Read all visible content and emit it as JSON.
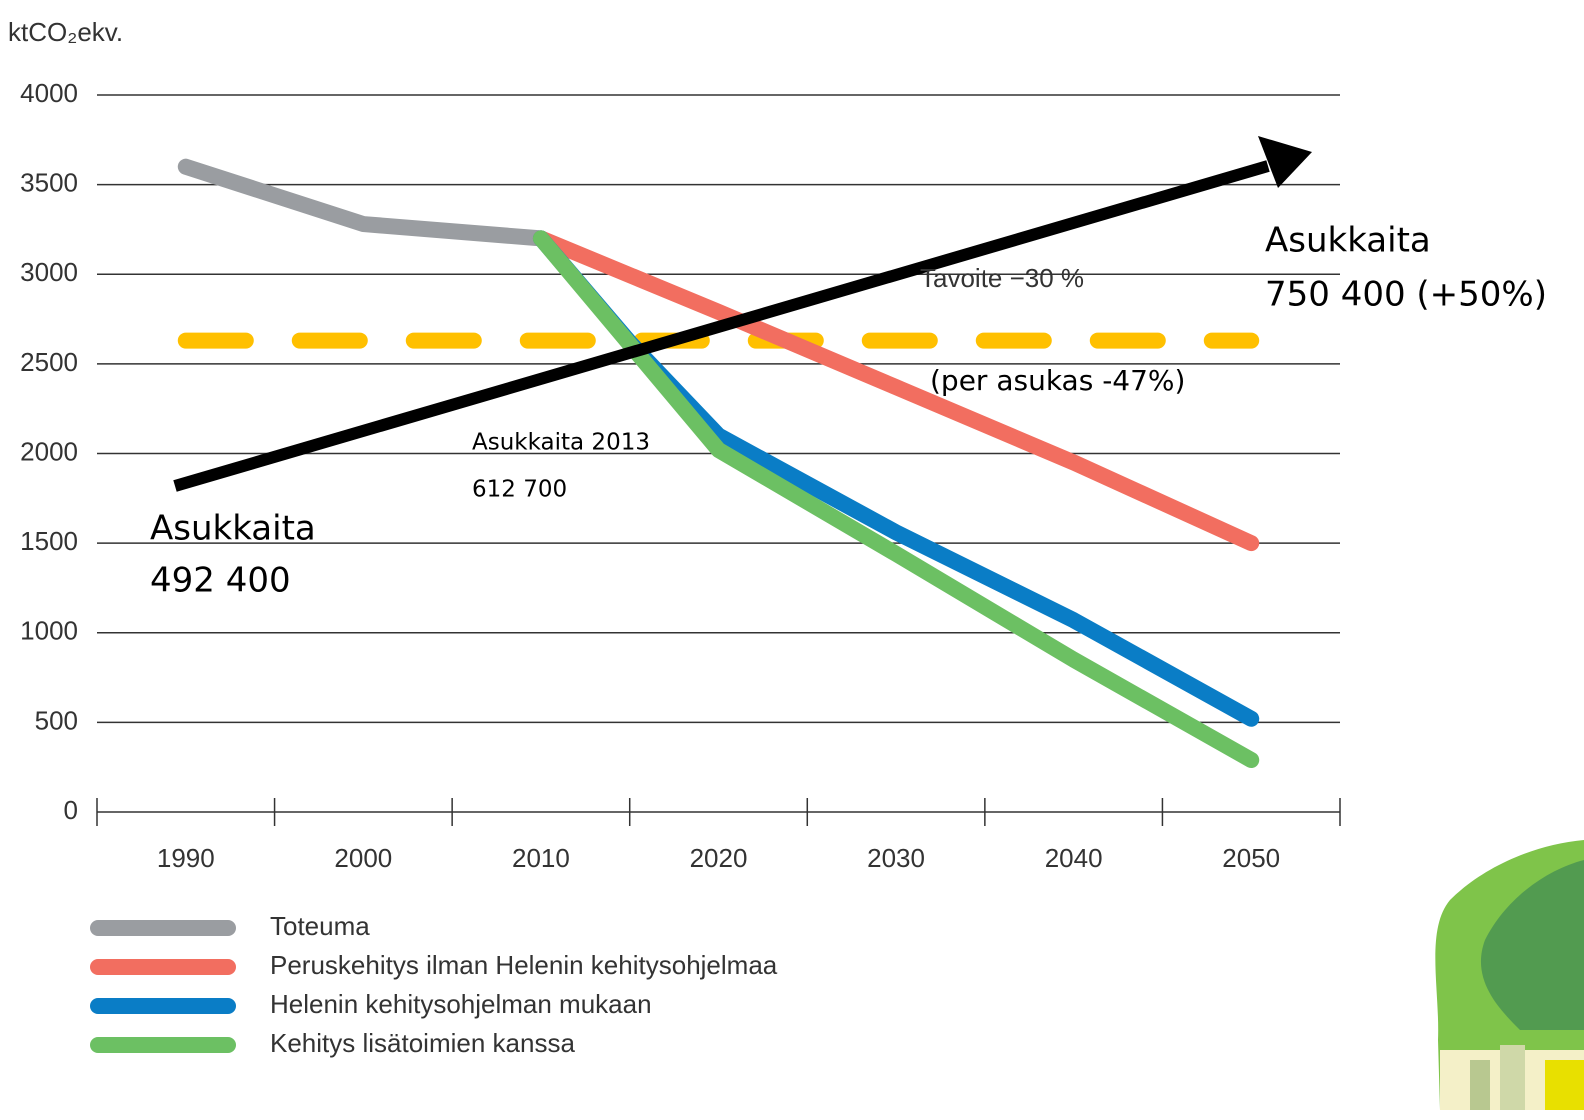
{
  "chart_data": {
    "type": "line",
    "y_label": "ktCO₂ekv.",
    "xlim": [
      1985,
      2055
    ],
    "xticks": [
      1990,
      2000,
      2010,
      2020,
      2030,
      2040,
      2050
    ],
    "ylim": [
      0,
      4000
    ],
    "yticks": [
      0,
      500,
      1000,
      1500,
      2000,
      2500,
      3000,
      3500,
      4000
    ],
    "grid": true,
    "series": [
      {
        "name": "Toteuma",
        "color": "#9a9da1",
        "x": [
          1990,
          2000,
          2010
        ],
        "values": [
          3600,
          3280,
          3200
        ]
      },
      {
        "name": "Peruskehitys ilman Helenin kehitysohjelmaa",
        "color": "#f26e60",
        "x": [
          2010,
          2020,
          2030,
          2040,
          2050
        ],
        "values": [
          3200,
          2790,
          2370,
          1950,
          1500
        ]
      },
      {
        "name": "Helenin kehitysohjelman mukaan",
        "color": "#0a7dc6",
        "x": [
          2010,
          2015,
          2020,
          2030,
          2040,
          2050
        ],
        "values": [
          3200,
          2620,
          2100,
          1560,
          1070,
          520
        ]
      },
      {
        "name": "Kehitys lisätoimien kanssa",
        "color": "#6cc063",
        "x": [
          2010,
          2020,
          2030,
          2040,
          2050
        ],
        "values": [
          3200,
          2020,
          1440,
          850,
          290
        ]
      }
    ],
    "target": {
      "color": "#ffc000",
      "x": [
        1990,
        2050
      ],
      "values": [
        2630,
        2630
      ]
    },
    "annotations": [
      "Tavoite −30 %",
      "(per asukas -47%)",
      "Asukkaita 2013",
      "612 700",
      "Asukkaita",
      "492 400",
      "Asukkaita",
      "750 400 (+50%)"
    ]
  }
}
